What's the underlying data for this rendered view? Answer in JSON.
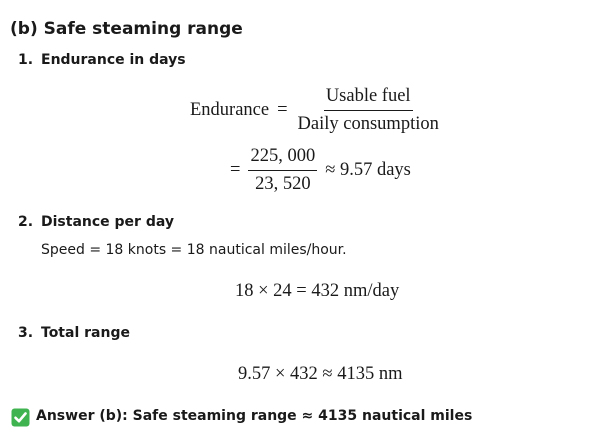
{
  "heading": "(b) Safe steaming range",
  "steps": [
    {
      "number": "1.",
      "title": "Endurance in days",
      "equations": [
        {
          "lhs": "Endurance",
          "op": "=",
          "numerator": "Usable fuel",
          "denominator": "Daily consumption"
        },
        {
          "op": "=",
          "numerator": "225, 000",
          "denominator": "23, 520",
          "rest": "≈ 9.57 days"
        }
      ]
    },
    {
      "number": "2.",
      "title": "Distance per day",
      "text": "Speed = 18 knots = 18 nautical miles/hour.",
      "equation": "18 × 24 = 432 nm/day"
    },
    {
      "number": "3.",
      "title": "Total range",
      "equation": "9.57 × 432 ≈ 4135 nm"
    }
  ],
  "answer": "Answer (b): Safe steaming range ≈ 4135 nautical miles"
}
